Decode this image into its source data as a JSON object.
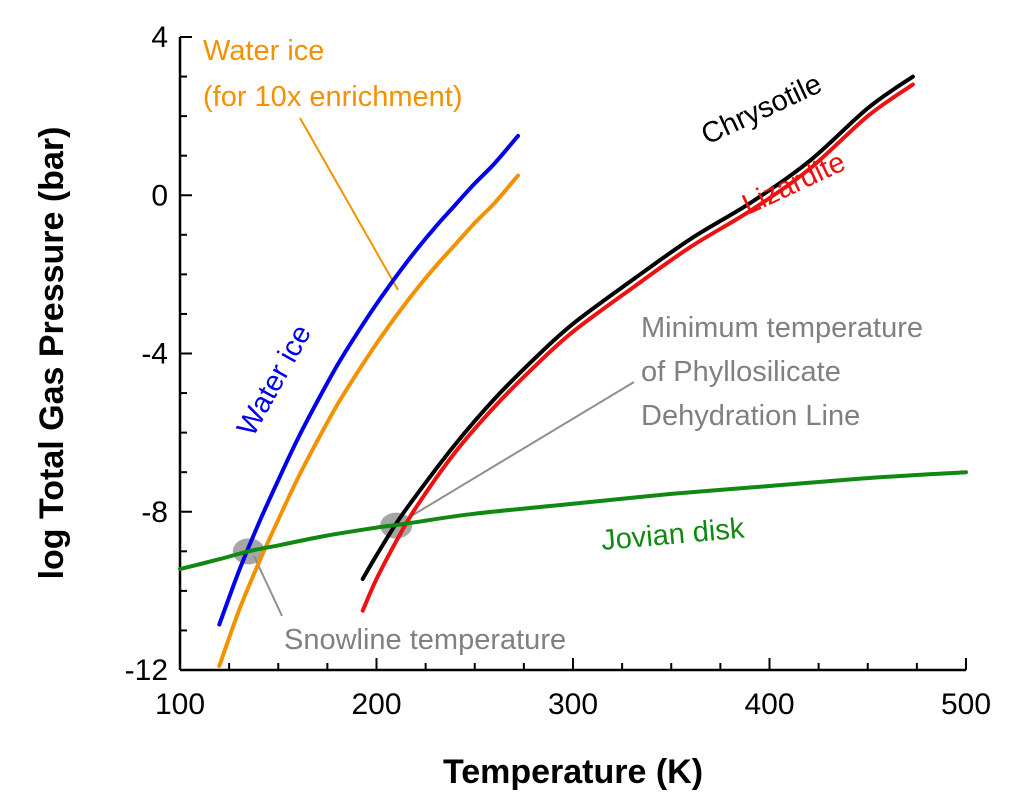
{
  "chart_data": {
    "type": "line",
    "xlabel": "Temperature (K)",
    "ylabel": "log Total Gas Pressure (bar)",
    "xlim": [
      100,
      500
    ],
    "ylim": [
      -12,
      4
    ],
    "x_ticks": [
      100,
      200,
      300,
      400,
      500
    ],
    "x_tick_labels": [
      "100",
      "200",
      "300",
      "400",
      "500"
    ],
    "y_ticks": [
      -12,
      -8,
      -4,
      0,
      4
    ],
    "y_tick_labels": [
      "-12",
      "-8",
      "-4",
      "0",
      "4"
    ],
    "grid": false,
    "series": [
      {
        "name": "Water ice",
        "color": "#0000ee",
        "x": [
          120,
          130,
          140,
          150,
          160,
          170,
          180,
          190,
          200,
          210,
          220,
          230,
          240,
          250,
          260,
          272
        ],
        "y": [
          -10.85,
          -9.5,
          -8.3,
          -7.2,
          -6.15,
          -5.2,
          -4.3,
          -3.5,
          -2.75,
          -2.05,
          -1.4,
          -0.8,
          -0.25,
          0.3,
          0.8,
          1.5
        ]
      },
      {
        "name": "Water ice (for 10x enrichment)",
        "color": "#f39200",
        "x": [
          120,
          130,
          140,
          150,
          160,
          170,
          180,
          190,
          200,
          210,
          220,
          230,
          240,
          250,
          260,
          272
        ],
        "y": [
          -11.9,
          -10.5,
          -9.3,
          -8.2,
          -7.15,
          -6.2,
          -5.3,
          -4.5,
          -3.75,
          -3.05,
          -2.4,
          -1.8,
          -1.25,
          -0.7,
          -0.2,
          0.5
        ]
      },
      {
        "name": "Chrysotile",
        "color": "#000000",
        "x": [
          193,
          200,
          210,
          220,
          240,
          260,
          280,
          300,
          330,
          360,
          390,
          420,
          450,
          473
        ],
        "y": [
          -9.7,
          -9.1,
          -8.3,
          -7.6,
          -6.3,
          -5.15,
          -4.15,
          -3.25,
          -2.15,
          -1.1,
          -0.2,
          0.85,
          2.2,
          3.0
        ]
      },
      {
        "name": "Lizardite",
        "color": "#ee1111",
        "x": [
          193,
          200,
          210,
          220,
          240,
          260,
          280,
          300,
          330,
          360,
          390,
          420,
          450,
          473
        ],
        "y": [
          -10.5,
          -9.7,
          -8.75,
          -7.9,
          -6.5,
          -5.35,
          -4.35,
          -3.45,
          -2.35,
          -1.3,
          -0.4,
          0.65,
          2.0,
          2.8
        ]
      },
      {
        "name": "Jovian disk",
        "color": "#118811",
        "x": [
          100,
          120,
          135,
          150,
          175,
          200,
          215,
          250,
          300,
          350,
          400,
          450,
          500
        ],
        "y": [
          -9.45,
          -9.2,
          -9.0,
          -8.85,
          -8.6,
          -8.4,
          -8.3,
          -8.05,
          -7.8,
          -7.55,
          -7.35,
          -7.15,
          -7.0
        ]
      }
    ],
    "highlights": [
      {
        "x": 135,
        "y": -9.0
      },
      {
        "x": 210,
        "y": -8.35
      }
    ],
    "annotations": {
      "water_ice": {
        "text": "Water ice",
        "color": "#0000ee"
      },
      "water_ice_10x": {
        "line1": "Water ice",
        "line2": "(for 10x enrichment)",
        "color": "#f39200"
      },
      "chrysotile": {
        "text": "Chrysotile",
        "color": "#000000"
      },
      "lizardite": {
        "text": "Lizardite",
        "color": "#ee1111"
      },
      "jovian_disk": {
        "text": "Jovian disk",
        "color": "#118811"
      },
      "min_temp": {
        "line1": "Minimum temperature",
        "line2": "of Phyllosilicate",
        "line3": "Dehydration Line",
        "color": "#808080"
      },
      "snowline": {
        "text": "Snowline temperature",
        "color": "#808080"
      }
    }
  }
}
